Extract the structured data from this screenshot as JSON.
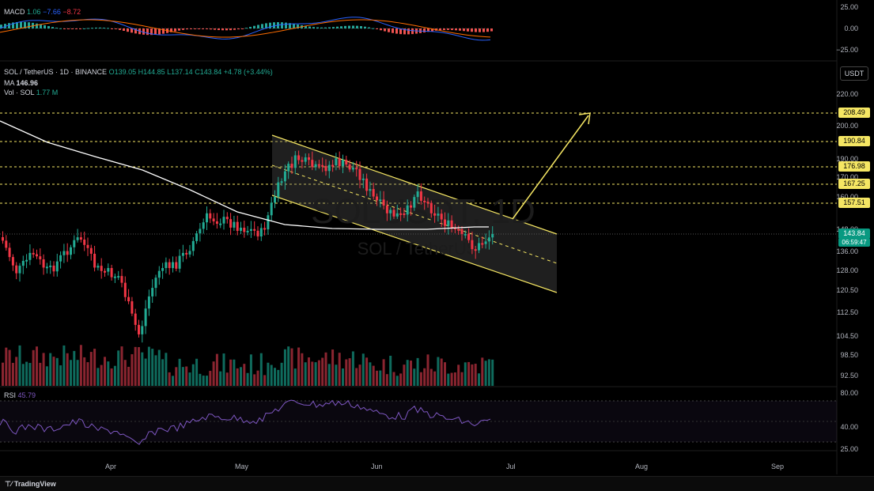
{
  "macd": {
    "label": "MACD",
    "v1": "1.06",
    "v2": "−7.66",
    "v3": "−8.72",
    "axis": [
      "25.00",
      "0.00",
      "−25.00"
    ]
  },
  "symbol": {
    "title": "SOL / TetherUS · 1D · BINANCE",
    "o": "O139.05",
    "h": "H144.85",
    "l": "L137.14",
    "c": "C143.84",
    "chg": "+4.78 (+3.44%)"
  },
  "ma": {
    "label": "MA",
    "value": "146.96"
  },
  "vol": {
    "label": "Vol · SOL",
    "value": "1.77 M"
  },
  "currency_button": "USDT",
  "price_axis": [
    "220.00",
    "200.00",
    "190.00",
    "170.00",
    "160.00",
    "148.00",
    "136.00",
    "128.00",
    "120.50",
    "112.50",
    "104.50",
    "98.50",
    "92.50"
  ],
  "levels": [
    "208.49",
    "190.84",
    "176.98",
    "167.25",
    "157.51"
  ],
  "current_price": {
    "value": "143.84",
    "countdown": "06:59:47"
  },
  "watermark": {
    "line1": "SOLUSDT, 1D",
    "line2": "SOL / TetherUS"
  },
  "rsi": {
    "label": "RSI",
    "value": "45.79",
    "axis": [
      "80.00",
      "40.00",
      "25.00"
    ]
  },
  "time_axis": [
    "Apr",
    "May",
    "Jun",
    "Jul",
    "Aug",
    "Sep"
  ],
  "footer": {
    "brand": "TradingView"
  },
  "colors": {
    "up": "#22ab94",
    "down": "#f23645",
    "level": "#f5e663",
    "ma": "#ffffff",
    "rsi": "#7e57c2",
    "macd": "#2962ff",
    "signal": "#ff6d00"
  }
}
